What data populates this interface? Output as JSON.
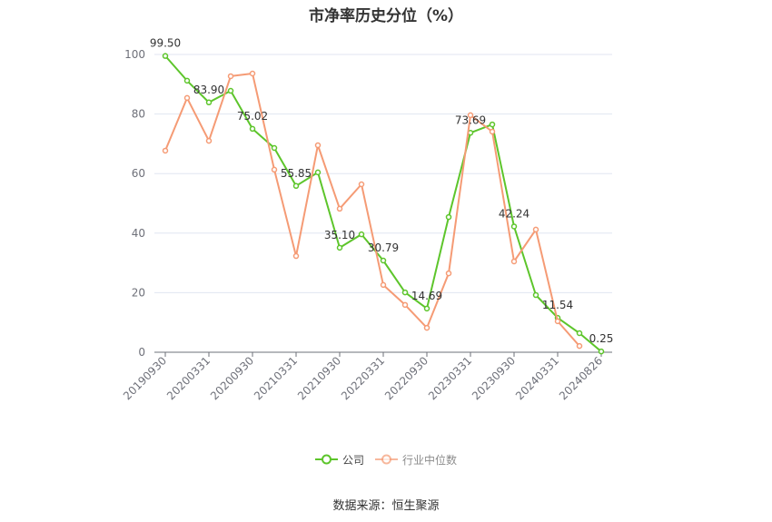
{
  "chart_data": {
    "type": "line",
    "title": "市净率历史分位（%）",
    "categories": [
      "20190930",
      "",
      "20200331",
      "",
      "20200930",
      "",
      "20210331",
      "",
      "20210930",
      "",
      "20220331",
      "",
      "20220930",
      "",
      "20230331",
      "",
      "20230930",
      "",
      "20240331",
      "",
      "20240826"
    ],
    "ylim": [
      0,
      100
    ],
    "yticks": [
      0,
      20,
      40,
      60,
      80,
      100
    ],
    "grid": true,
    "legend_position": "bottom",
    "series": [
      {
        "name": "公司",
        "color": "#5dc52b",
        "values": [
          99.5,
          91.2,
          83.9,
          87.8,
          75.02,
          68.6,
          55.85,
          60.4,
          35.1,
          39.6,
          30.79,
          20.1,
          14.69,
          45.4,
          73.69,
          76.5,
          42.24,
          19.2,
          11.54,
          6.4,
          0.25
        ],
        "data_labels": [
          "99.50",
          null,
          "83.90",
          null,
          "75.02",
          null,
          "55.85",
          null,
          "35.10",
          null,
          "30.79",
          null,
          "14.69",
          null,
          "73.69",
          null,
          "42.24",
          null,
          "11.54",
          null,
          "0.25"
        ]
      },
      {
        "name": "行业中位数",
        "color": "#f59b75",
        "values": [
          67.7,
          85.4,
          71.0,
          92.7,
          93.6,
          61.3,
          32.3,
          69.5,
          48.2,
          56.4,
          22.6,
          15.9,
          8.2,
          26.5,
          79.6,
          74.1,
          30.5,
          41.2,
          10.4,
          2.1,
          null
        ]
      }
    ]
  },
  "source": "数据来源：恒生聚源"
}
